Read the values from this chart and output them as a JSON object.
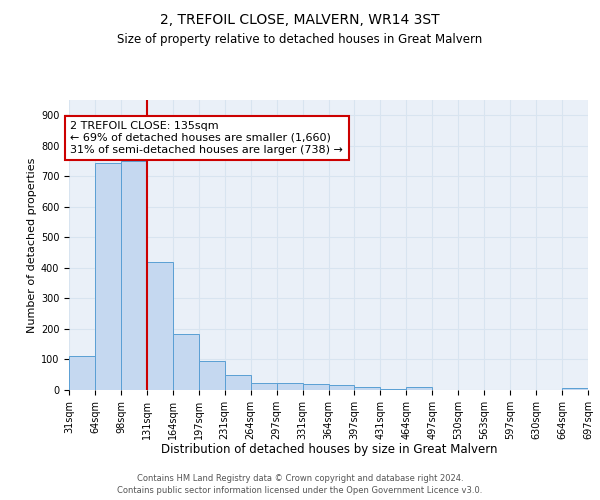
{
  "title": "2, TREFOIL CLOSE, MALVERN, WR14 3ST",
  "subtitle": "Size of property relative to detached houses in Great Malvern",
  "xlabel": "Distribution of detached houses by size in Great Malvern",
  "ylabel": "Number of detached properties",
  "bar_values": [
    112,
    745,
    750,
    418,
    185,
    96,
    48,
    22,
    22,
    20,
    18,
    10,
    2,
    10,
    1,
    0,
    0,
    0,
    0,
    8
  ],
  "categories": [
    "31sqm",
    "64sqm",
    "98sqm",
    "131sqm",
    "164sqm",
    "197sqm",
    "231sqm",
    "264sqm",
    "297sqm",
    "331sqm",
    "364sqm",
    "397sqm",
    "431sqm",
    "464sqm",
    "497sqm",
    "530sqm",
    "563sqm",
    "597sqm",
    "630sqm",
    "664sqm",
    "697sqm"
  ],
  "bar_color": "#c5d8f0",
  "bar_edge_color": "#5a9fd4",
  "grid_color": "#d8e4f0",
  "background_color": "#eaf0f8",
  "vline_color": "#cc0000",
  "vline_x": 3,
  "annotation_line1": "2 TREFOIL CLOSE: 135sqm",
  "annotation_line2": "← 69% of detached houses are smaller (1,660)",
  "annotation_line3": "31% of semi-detached houses are larger (738) →",
  "annotation_box_color": "#ffffff",
  "annotation_border_color": "#cc0000",
  "ylim": [
    0,
    950
  ],
  "yticks": [
    0,
    100,
    200,
    300,
    400,
    500,
    600,
    700,
    800,
    900
  ],
  "footer_line1": "Contains HM Land Registry data © Crown copyright and database right 2024.",
  "footer_line2": "Contains public sector information licensed under the Open Government Licence v3.0.",
  "title_fontsize": 10,
  "subtitle_fontsize": 8.5,
  "xlabel_fontsize": 8.5,
  "ylabel_fontsize": 8,
  "tick_fontsize": 7,
  "annotation_fontsize": 8,
  "footer_fontsize": 6
}
